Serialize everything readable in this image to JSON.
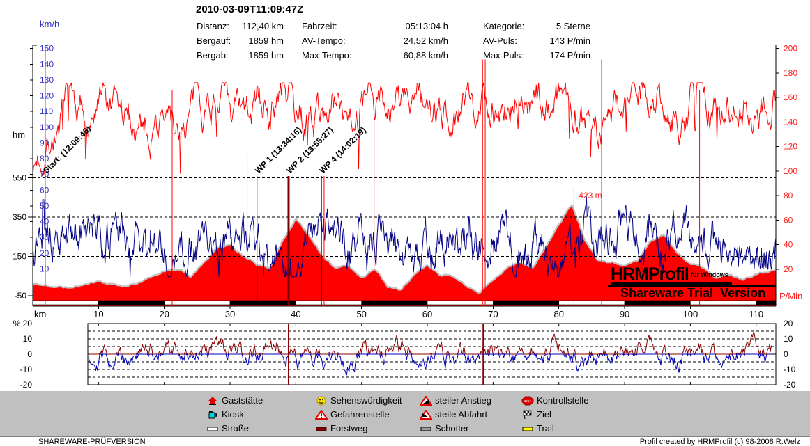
{
  "header": {
    "title": "2010-03-09T11:09:47Z",
    "stats": [
      {
        "label": "Distanz:",
        "value": "112,40 km",
        "col": 0,
        "row": 0
      },
      {
        "label": "Bergauf:",
        "value": "1859 hm",
        "col": 0,
        "row": 1
      },
      {
        "label": "Bergab:",
        "value": "1859 hm",
        "col": 0,
        "row": 2
      },
      {
        "label": "Fahrzeit:",
        "value": "05:13:04 h",
        "col": 1,
        "row": 0
      },
      {
        "label": "AV-Tempo:",
        "value": "24,52 km/h",
        "col": 1,
        "row": 1
      },
      {
        "label": "Max-Tempo:",
        "value": "60,88 km/h",
        "col": 1,
        "row": 2
      },
      {
        "label": "Kategorie:",
        "value": "5 Sterne",
        "col": 2,
        "row": 0
      },
      {
        "label": "AV-Puls:",
        "value": "143 P/min",
        "col": 2,
        "row": 1
      },
      {
        "label": "Max-Puls:",
        "value": "174 P/min",
        "col": 2,
        "row": 2
      }
    ]
  },
  "watermark": {
    "brand": "HRMProfil",
    "sub": "für Windows",
    "trial": "Shareware Trial  Version"
  },
  "legend": {
    "items": [
      {
        "icon": "house",
        "label": "Gaststätte",
        "col": 0,
        "row": 0
      },
      {
        "icon": "kiosk",
        "label": "Kiosk",
        "col": 0,
        "row": 1
      },
      {
        "icon": "road",
        "label": "Straße",
        "col": 0,
        "row": 2
      },
      {
        "icon": "smiley",
        "label": "Sehenswürdigkeit",
        "col": 1,
        "row": 0
      },
      {
        "icon": "warning",
        "label": "Gefahrenstelle",
        "col": 1,
        "row": 1
      },
      {
        "icon": "forestway",
        "label": "Forstweg",
        "col": 1,
        "row": 2
      },
      {
        "icon": "climb",
        "label": "steiler Anstieg",
        "col": 2,
        "row": 0
      },
      {
        "icon": "descent",
        "label": "steile Abfahrt",
        "col": 2,
        "row": 1
      },
      {
        "icon": "gravel",
        "label": "Schotter",
        "col": 2,
        "row": 2
      },
      {
        "icon": "stop",
        "label": "Kontrollstelle",
        "col": 3,
        "row": 0
      },
      {
        "icon": "finish-flag",
        "label": "Ziel",
        "col": 3,
        "row": 1
      },
      {
        "icon": "trail",
        "label": "Trail",
        "col": 3,
        "row": 2
      }
    ]
  },
  "statusbar": {
    "left": "SHAREWARE-PRÜFVERSION",
    "right": "Profil created by HRMProfil (c) 98-2008 R.Welz"
  },
  "chart_data": [
    {
      "type": "line",
      "title": "2010-03-09T11:09:47Z",
      "x_axis": {
        "label": "km",
        "min": 0,
        "max": 113,
        "tick_step": 10
      },
      "x_step_km": 2,
      "axes": {
        "speed": {
          "unit": "km/h",
          "min": 0,
          "max": 150,
          "tick_step": 10,
          "color": "#3232c8"
        },
        "pulse": {
          "unit": "P/Min",
          "min": 0,
          "max": 200,
          "tick_step": 20,
          "color": "#ff2020"
        },
        "elevation": {
          "unit": "hm",
          "ticks": [
            550,
            350,
            150,
            -50
          ],
          "grid_dashed": [
            550,
            350,
            150
          ]
        }
      },
      "series": [
        {
          "name": "elevation_hm",
          "color": "#ff0000",
          "outline": "#c0c0c0",
          "values": [
            10,
            0,
            -5,
            -10,
            10,
            25,
            8,
            0,
            10,
            45,
            75,
            85,
            50,
            120,
            195,
            210,
            150,
            110,
            95,
            230,
            345,
            255,
            150,
            95,
            100,
            45,
            90,
            0,
            -10,
            60,
            105,
            55,
            55,
            0,
            -25,
            30,
            90,
            120,
            90,
            200,
            320,
            420,
            230,
            130,
            125,
            105,
            130,
            230,
            265,
            170,
            110,
            95,
            35,
            55,
            30,
            60,
            75
          ]
        },
        {
          "name": "speed_kmh",
          "color": "#000085",
          "values": [
            25,
            42,
            28,
            30,
            30,
            32,
            30,
            28,
            26,
            22,
            18,
            20,
            26,
            22,
            30,
            28,
            30,
            26,
            18,
            15,
            16,
            36,
            42,
            30,
            28,
            25,
            30,
            28,
            24,
            20,
            25,
            28,
            25,
            27,
            20,
            26,
            30,
            25,
            28,
            16,
            14,
            14,
            36,
            30,
            32,
            35,
            30,
            24,
            20,
            34,
            30,
            28,
            24,
            16,
            15,
            20,
            24
          ]
        },
        {
          "name": "pulse_pmin",
          "color": "#ff0000",
          "values": [
            100,
            128,
            140,
            150,
            145,
            150,
            138,
            134,
            140,
            142,
            138,
            134,
            150,
            158,
            162,
            146,
            130,
            152,
            150,
            163,
            148,
            140,
            150,
            155,
            160,
            150,
            145,
            158,
            157,
            163,
            150,
            140,
            148,
            154,
            158,
            161,
            155,
            159,
            150,
            157,
            164,
            167,
            141,
            134,
            148,
            159,
            164,
            167,
            159,
            150,
            155,
            159,
            157,
            154,
            150,
            158,
            164
          ]
        }
      ],
      "waypoints": [
        {
          "label": "Start: (12:09:46)",
          "km": 1.9,
          "line": "red-full"
        },
        {
          "label": "WP 1 (13:34:16)",
          "km": 34.1,
          "line": "black"
        },
        {
          "label": "WP 2 (13:55:27)",
          "km": 38.9,
          "line": "dark-thick"
        },
        {
          "label": "WP 4 (14:02:19)",
          "km": 43.9,
          "line": "black"
        }
      ],
      "poi_lines": [
        {
          "km": 21.2,
          "top_pmin": 166
        },
        {
          "km": 32.6,
          "top_pmin": 112
        },
        {
          "km": 44.3,
          "top_pmin": 96
        },
        {
          "km": 51.9,
          "top_pmin": 151
        },
        {
          "km": 68.4,
          "top_pmin": 191
        },
        {
          "km": 68.8,
          "top_pmin": 191
        },
        {
          "km": 82.3,
          "top_pmin": 87
        },
        {
          "km": 86.5,
          "top_pmin": 191
        },
        {
          "km": 101.4,
          "top_pmin": 166
        }
      ],
      "annotation": {
        "text": "423 m",
        "km": 82.6,
        "y_hm": 445
      },
      "scale_bar": {
        "interval_km": 10,
        "colors": [
          "#ffffff",
          "#000000"
        ]
      }
    },
    {
      "type": "line",
      "y_axis": {
        "label": "%",
        "min": -20,
        "max": 20,
        "tick_step": 10,
        "dashed_grid": [
          15,
          10,
          5,
          -5,
          -10,
          -15
        ]
      },
      "left_tick_labels": [
        "% 20",
        "10",
        "0",
        "-10",
        "-20"
      ],
      "right_tick_labels": [
        "20",
        "10",
        "0",
        "-10",
        "-20"
      ],
      "colors": {
        "positive": "#8b0000",
        "negative": "#0000bb"
      },
      "x_step_km": 2,
      "values_pct": [
        -0.5,
        -0.4,
        -0.3,
        0.4,
        0.9,
        0,
        -0.6,
        0.1,
        1.1,
        1.6,
        1,
        -0.6,
        0.9,
        3.6,
        2.3,
        -1.1,
        -2.5,
        -1.4,
        3,
        6.3,
        0.6,
        -4.9,
        -4,
        -1.3,
        -1.3,
        -0.3,
        -1.1,
        -2.5,
        1.5,
        2.9,
        -0.1,
        -1.3,
        -1.4,
        -2,
        0.8,
        2.9,
        2.3,
        0,
        2,
        5.8,
        5.5,
        -2.3,
        -7.3,
        -2.6,
        -0.6,
        0.1,
        3.1,
        3.4,
        -1.5,
        -3.9,
        -1.9,
        -1.9,
        -1,
        -0.1,
        0.1,
        1.1,
        0.4
      ],
      "event_lines_km": [
        38.9,
        68.5
      ]
    }
  ]
}
